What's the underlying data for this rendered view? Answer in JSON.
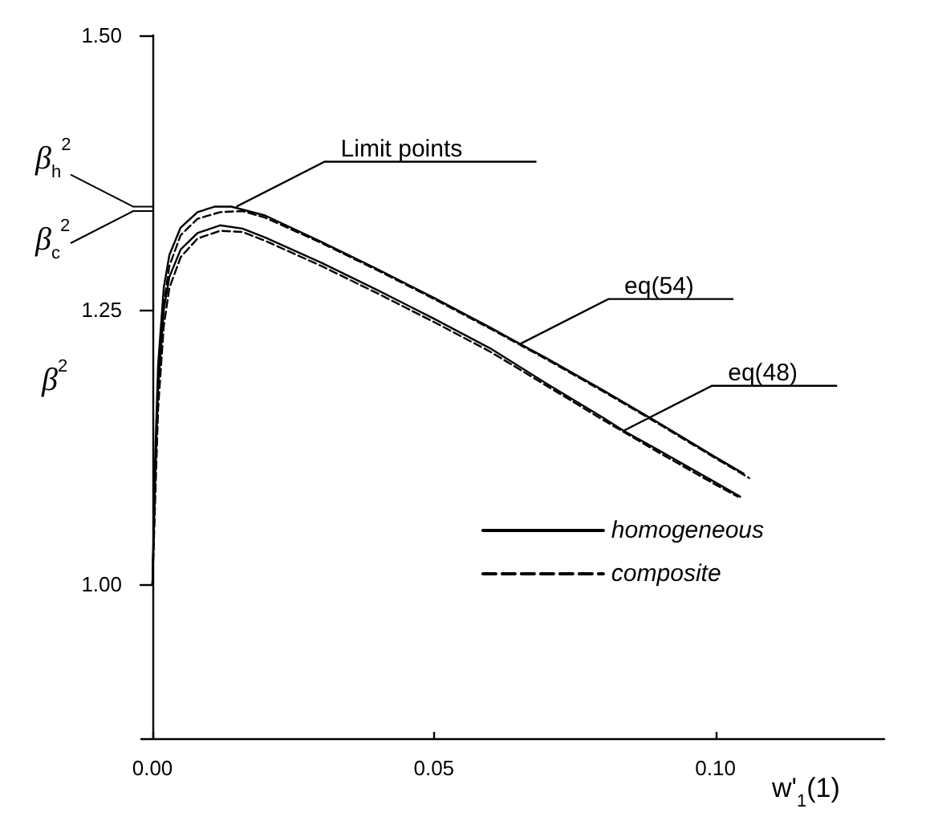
{
  "chart_data": {
    "type": "line",
    "xlabel": "w'$_{1}$(1)",
    "ylabel": "β$^{2}$",
    "xlim": [
      -0.002,
      0.13
    ],
    "ylim": [
      0.86,
      1.5
    ],
    "xticks": [
      {
        "value": 0,
        "label": "0.00"
      },
      {
        "value": 0.05,
        "label": "0.05"
      },
      {
        "value": 0.1,
        "label": "0.10"
      }
    ],
    "yticks": [
      {
        "value": 1,
        "label": "1.00"
      },
      {
        "value": 1.25,
        "label": "1.25"
      },
      {
        "value": 1.5,
        "label": "1.50"
      }
    ],
    "grid": false,
    "legend": "bottom right",
    "marker": "none",
    "series": [
      {
        "name": "homogeneous",
        "color": "#000000",
        "line_style": "solid",
        "x": [
          0,
          0.0005,
          0.001,
          0.002,
          0.003,
          0.005,
          0.008,
          0.011,
          0.014,
          0.02,
          0.03,
          0.04,
          0.05,
          0.06,
          0.0653,
          0.07,
          0.08,
          0.09,
          0.1,
          0.105
        ],
        "values": [
          1.0,
          1.12,
          1.2,
          1.27,
          1.3,
          1.325,
          1.339,
          1.344,
          1.344,
          1.336,
          1.312,
          1.287,
          1.261,
          1.234,
          1.219,
          1.206,
          1.177,
          1.147,
          1.116,
          1.101
        ]
      },
      {
        "name": "composite",
        "color": "#000000",
        "line_style": "dashed",
        "x": [
          0,
          0.0005,
          0.001,
          0.002,
          0.003,
          0.005,
          0.008,
          0.012,
          0.016,
          0.02,
          0.03,
          0.04,
          0.05,
          0.06,
          0.07,
          0.08,
          0.09,
          0.1,
          0.106
        ],
        "values": [
          1.0,
          1.1,
          1.18,
          1.255,
          1.29,
          1.318,
          1.333,
          1.339,
          1.34,
          1.334,
          1.311,
          1.286,
          1.26,
          1.233,
          1.205,
          1.176,
          1.146,
          1.115,
          1.097
        ]
      },
      {
        "color": "#000000",
        "line_style": "solid",
        "x": [
          0,
          0.0005,
          0.001,
          0.002,
          0.003,
          0.005,
          0.008,
          0.012,
          0.016,
          0.02,
          0.03,
          0.04,
          0.05,
          0.06,
          0.07,
          0.08,
          0.0837,
          0.09,
          0.1,
          0.1044
        ],
        "values": [
          1.0,
          1.1,
          1.18,
          1.25,
          1.28,
          1.305,
          1.32,
          1.327,
          1.324,
          1.316,
          1.293,
          1.268,
          1.242,
          1.215,
          1.183,
          1.152,
          1.14,
          1.122,
          1.093,
          1.08
        ]
      },
      {
        "color": "#000000",
        "line_style": "dashed",
        "x": [
          0,
          0.0005,
          0.001,
          0.002,
          0.003,
          0.005,
          0.008,
          0.012,
          0.016,
          0.02,
          0.03,
          0.04,
          0.05,
          0.06,
          0.07,
          0.08,
          0.09,
          0.1,
          0.104
        ],
        "values": [
          1.0,
          1.08,
          1.16,
          1.235,
          1.27,
          1.298,
          1.315,
          1.322,
          1.321,
          1.313,
          1.29,
          1.265,
          1.239,
          1.212,
          1.181,
          1.15,
          1.12,
          1.091,
          1.08
        ]
      }
    ],
    "annotations": [
      "β$_{h}$$^{2}$",
      "β$_{c}$$^{2}$",
      {
        "text": "Limit points",
        "x": 0.0149,
        "y": 1.344
      },
      {
        "text": "eq(54)",
        "x": 0.0653,
        "y": 1.219
      },
      {
        "text": "eq(48)",
        "x": 0.0837,
        "y": 1.14
      }
    ]
  }
}
